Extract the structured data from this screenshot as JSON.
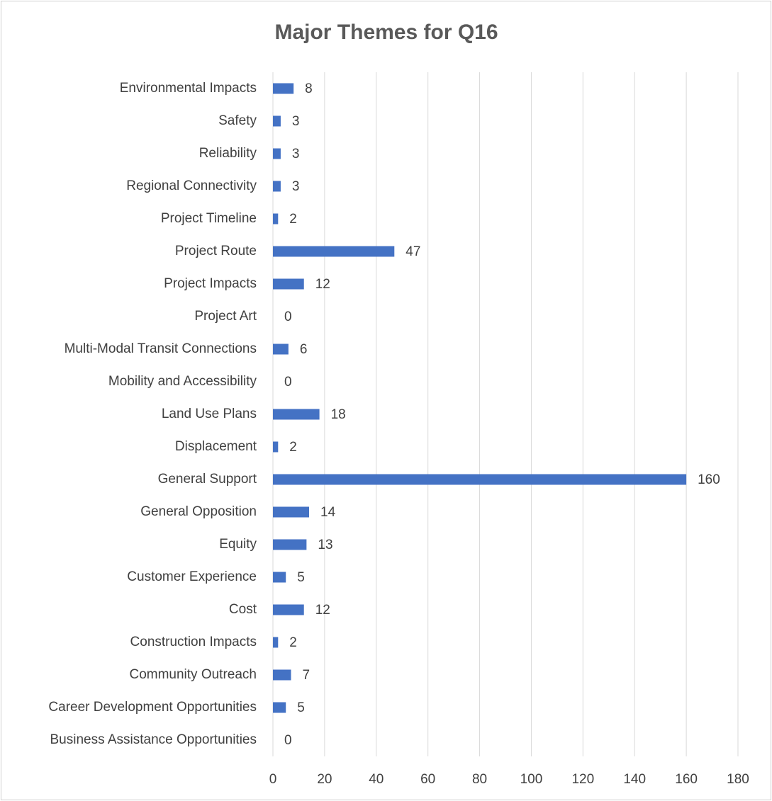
{
  "chart_data": {
    "type": "bar",
    "orientation": "horizontal",
    "title": "Major Themes for Q16",
    "categories": [
      "Environmental Impacts",
      "Safety",
      "Reliability",
      "Regional Connectivity",
      "Project Timeline",
      "Project Route",
      "Project Impacts",
      "Project Art",
      "Multi-Modal Transit Connections",
      "Mobility and Accessibility",
      "Land Use Plans",
      "Displacement",
      "General Support",
      "General Opposition",
      "Equity",
      "Customer Experience",
      "Cost",
      "Construction Impacts",
      "Community Outreach",
      "Career Development Opportunities",
      "Business Assistance Opportunities"
    ],
    "values": [
      8,
      3,
      3,
      3,
      2,
      47,
      12,
      0,
      6,
      0,
      18,
      2,
      160,
      14,
      13,
      5,
      12,
      2,
      7,
      5,
      0
    ],
    "color": "#4472c4",
    "xlim": [
      0,
      180
    ],
    "xticks": [
      0,
      20,
      40,
      60,
      80,
      100,
      120,
      140,
      160,
      180
    ],
    "grid": true,
    "data_labels": true
  }
}
